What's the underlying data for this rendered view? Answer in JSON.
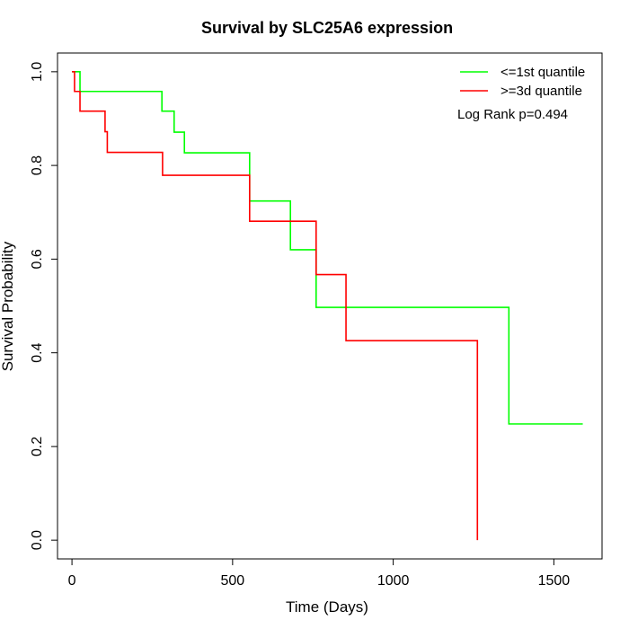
{
  "chart_data": {
    "type": "line",
    "title": "Survival by SLC25A6 expression",
    "xlabel": "Time (Days)",
    "ylabel": "Survival Probability",
    "xlim": [
      -45,
      1650
    ],
    "ylim": [
      -0.04,
      1.04
    ],
    "xticks": [
      0,
      500,
      1000,
      1500
    ],
    "yticks": [
      0.0,
      0.2,
      0.4,
      0.6,
      0.8,
      1.0
    ],
    "ytick_labels": [
      "0.0",
      "0.2",
      "0.4",
      "0.6",
      "0.8",
      "1.0"
    ],
    "grid": false,
    "legend_position": "top-right",
    "annotation": "Log Rank p=0.494",
    "series": [
      {
        "name": "<=1st quantile",
        "color": "#00ff00",
        "steps": [
          [
            0,
            1.0
          ],
          [
            25,
            0.958
          ],
          [
            280,
            0.916
          ],
          [
            318,
            0.871
          ],
          [
            350,
            0.827
          ],
          [
            553,
            0.724
          ],
          [
            680,
            0.62
          ],
          [
            760,
            0.497
          ],
          [
            1360,
            0.248
          ],
          [
            1590,
            0.248
          ]
        ]
      },
      {
        "name": ">=3d quantile",
        "color": "#ff0000",
        "steps": [
          [
            0,
            1.0
          ],
          [
            8,
            0.958
          ],
          [
            25,
            0.916
          ],
          [
            103,
            0.872
          ],
          [
            110,
            0.828
          ],
          [
            282,
            0.779
          ],
          [
            553,
            0.681
          ],
          [
            760,
            0.567
          ],
          [
            853,
            0.426
          ],
          [
            1262,
            0.0
          ]
        ]
      }
    ]
  }
}
